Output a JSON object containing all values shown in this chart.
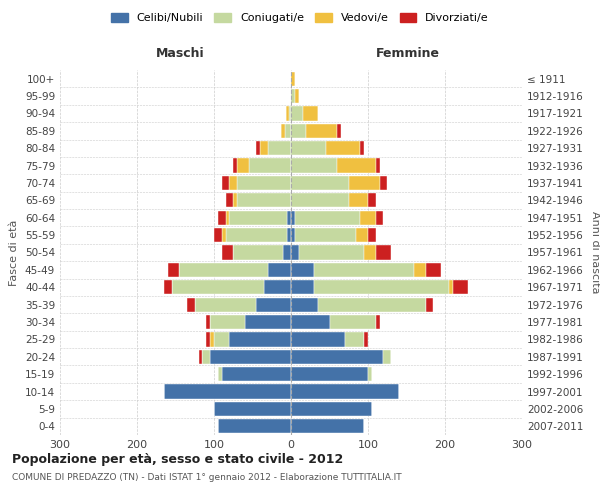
{
  "age_groups": [
    "0-4",
    "5-9",
    "10-14",
    "15-19",
    "20-24",
    "25-29",
    "30-34",
    "35-39",
    "40-44",
    "45-49",
    "50-54",
    "55-59",
    "60-64",
    "65-69",
    "70-74",
    "75-79",
    "80-84",
    "85-89",
    "90-94",
    "95-99",
    "100+"
  ],
  "birth_years": [
    "2007-2011",
    "2002-2006",
    "1997-2001",
    "1992-1996",
    "1987-1991",
    "1982-1986",
    "1977-1981",
    "1972-1976",
    "1967-1971",
    "1962-1966",
    "1957-1961",
    "1952-1956",
    "1947-1951",
    "1942-1946",
    "1937-1941",
    "1932-1936",
    "1927-1931",
    "1922-1926",
    "1917-1921",
    "1912-1916",
    "≤ 1911"
  ],
  "colors": {
    "celibi": "#4472a8",
    "coniugati": "#c5d9a0",
    "vedovi": "#f0c040",
    "divorziati": "#cc2020"
  },
  "males": {
    "celibi": [
      95,
      100,
      165,
      90,
      105,
      80,
      60,
      45,
      35,
      30,
      10,
      5,
      5,
      0,
      0,
      0,
      0,
      0,
      0,
      0,
      0
    ],
    "coniugati": [
      0,
      0,
      0,
      5,
      10,
      20,
      45,
      80,
      120,
      115,
      65,
      80,
      75,
      70,
      70,
      55,
      30,
      8,
      3,
      0,
      0
    ],
    "vedovi": [
      0,
      0,
      0,
      0,
      0,
      5,
      0,
      0,
      0,
      0,
      0,
      5,
      5,
      5,
      10,
      15,
      10,
      5,
      3,
      0,
      0
    ],
    "divorziati": [
      0,
      0,
      0,
      0,
      5,
      5,
      5,
      10,
      10,
      15,
      15,
      10,
      10,
      10,
      10,
      5,
      5,
      0,
      0,
      0,
      0
    ]
  },
  "females": {
    "celibi": [
      95,
      105,
      140,
      100,
      120,
      70,
      50,
      35,
      30,
      30,
      10,
      5,
      5,
      0,
      0,
      0,
      0,
      0,
      0,
      0,
      0
    ],
    "coniugati": [
      0,
      0,
      0,
      5,
      10,
      25,
      60,
      140,
      175,
      130,
      85,
      80,
      85,
      75,
      75,
      60,
      45,
      20,
      15,
      5,
      0
    ],
    "vedovi": [
      0,
      0,
      0,
      0,
      0,
      0,
      0,
      0,
      5,
      15,
      15,
      15,
      20,
      25,
      40,
      50,
      45,
      40,
      20,
      5,
      5
    ],
    "divorziati": [
      0,
      0,
      0,
      0,
      0,
      5,
      5,
      10,
      20,
      20,
      20,
      10,
      10,
      10,
      10,
      5,
      5,
      5,
      0,
      0,
      0
    ]
  },
  "xlim": 300,
  "title": "Popolazione per età, sesso e stato civile - 2012",
  "subtitle": "COMUNE DI PREDAZZO (TN) - Dati ISTAT 1° gennaio 2012 - Elaborazione TUTTITALIA.IT",
  "xlabel_left": "Maschi",
  "xlabel_right": "Femmine",
  "ylabel_left": "Fasce di età",
  "ylabel_right": "Anni di nascita",
  "legend_labels": [
    "Celibi/Nubili",
    "Coniugati/e",
    "Vedovi/e",
    "Divorziati/e"
  ],
  "background_color": "#ffffff",
  "grid_color": "#cccccc"
}
